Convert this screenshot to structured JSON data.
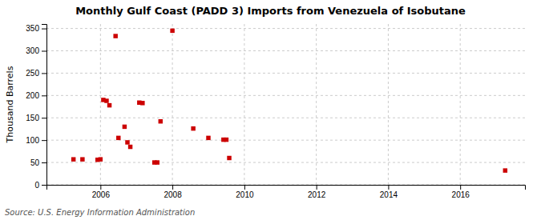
{
  "chart_data": {
    "type": "scatter",
    "title": "Monthly Gulf Coast (PADD 3) Imports from Venezuela of Isobutane",
    "ylabel": "Thousand Barrels",
    "source": "Source: U.S. Energy Information Administration",
    "color": "#cc0000",
    "marker": "square",
    "grid": true,
    "xlim": [
      2004.5,
      2017.8
    ],
    "ylim": [
      0,
      360
    ],
    "xticks": [
      2006,
      2008,
      2010,
      2012,
      2014,
      2016
    ],
    "yticks": [
      0,
      50,
      100,
      150,
      200,
      250,
      300,
      350
    ],
    "x": [
      2005.25,
      2005.5,
      2005.92,
      2006.0,
      2006.08,
      2006.17,
      2006.25,
      2006.42,
      2006.5,
      2006.67,
      2006.75,
      2006.83,
      2007.08,
      2007.17,
      2007.5,
      2007.58,
      2007.67,
      2008.0,
      2008.58,
      2009.0,
      2009.42,
      2009.5,
      2009.58,
      2017.25
    ],
    "values": [
      57,
      57,
      56,
      57,
      190,
      188,
      178,
      333,
      105,
      130,
      95,
      85,
      184,
      183,
      50,
      50,
      142,
      345,
      126,
      105,
      101,
      101,
      60,
      32
    ]
  }
}
